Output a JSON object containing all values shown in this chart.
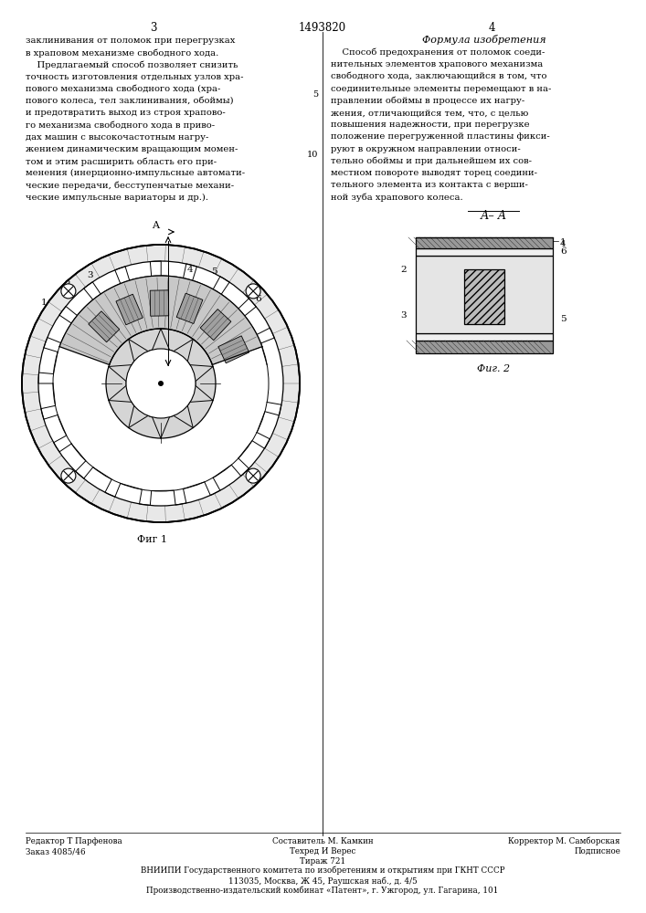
{
  "page_number_center": "1493820",
  "page_number_left": "3",
  "page_number_right": "4",
  "background_color": "#ffffff",
  "text_color": "#000000",
  "left_col_lines": [
    "заклинивания от поломок при перегрузках",
    "в храповом механизме свободного хода.",
    "    Предлагаемый способ позволяет снизить",
    "точность изготовления отдельных узлов хра-",
    "пового механизма свободного хода (хра-",
    "пового колеса, тел заклинивания, обоймы)",
    "и предотвратить выход из строя храпово-",
    "го механизма свободного хода в приво-",
    "дах машин с высокочастотным нагру-",
    "жением динамическим вращающим момен-",
    "том и этим расширить область его при-",
    "менения (инерционно-импульсные автомати-",
    "ческие передачи, бесступенчатые механи-",
    "ческие импульсные вариаторы и др.)."
  ],
  "right_col_title": "Формула изобретения",
  "right_col_lines": [
    "    Способ предохранения от поломок соеди-",
    "нительных элементов храпового механизма",
    "свободного хода, заключающийся в том, что",
    "соединительные элементы перемещают в на-",
    "правлении обоймы в процессе их нагру-",
    "жения, отличающийся тем, что, с целью",
    "повышения надежности, при перегрузке",
    "положение перегруженной пластины фикси-",
    "руют в окружном направлении относи-",
    "тельно обоймы и при дальнейшем их сов-",
    "местном повороте выводят торец соедини-",
    "тельного элемента из контакта с верши-",
    "ной зуба храпового колеса."
  ],
  "fig1_caption": "Фиг 1",
  "fig2_caption": "Фиг. 2",
  "footer_left1": "Редактор Т Парфенова",
  "footer_left2": "Заказ 4085/46",
  "footer_c1": "Составитель М. Камкин",
  "footer_c2": "Техред И Верес",
  "footer_c3": "Тираж 721",
  "footer_r1": "Корректор М. Самборская",
  "footer_r2": "Подписное",
  "footer_vnii": "ВНИИПИ Государственного комитета по изобретениям и открытиям при ГКНТ СССР",
  "footer_addr": "113035, Москва, Ж 45, Раушская наб., д. 4/5",
  "footer_fact": "Производственно-издательский комбинат «Патент», г. Ужгород, ул. Гагарина, 101"
}
